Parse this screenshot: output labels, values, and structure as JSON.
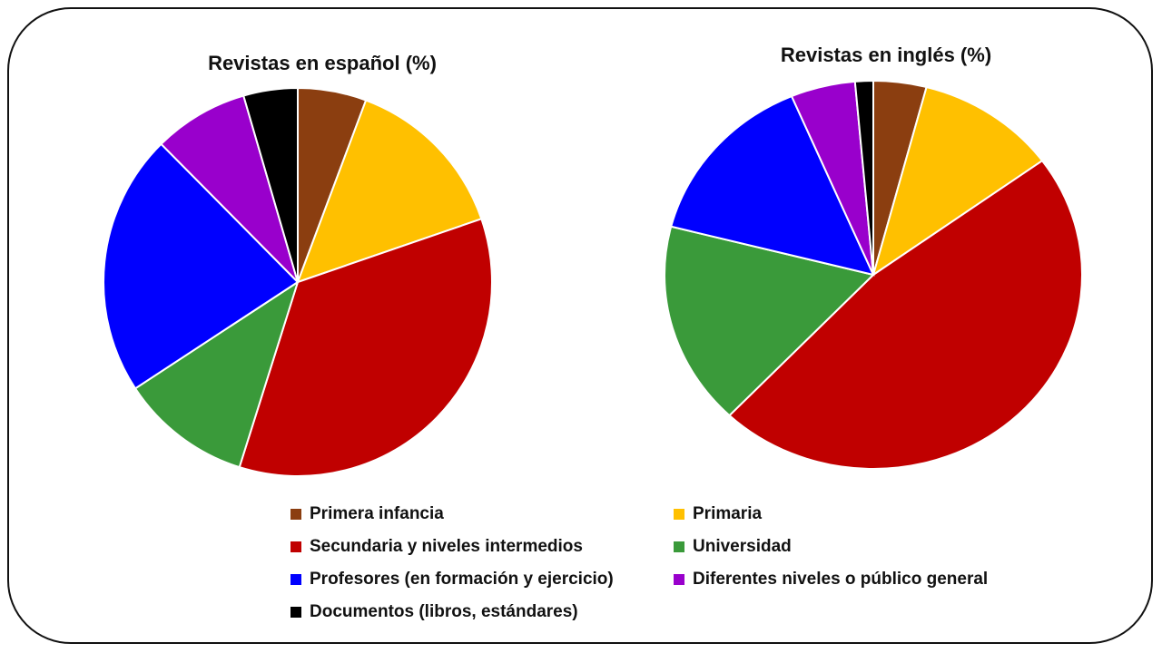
{
  "chart_data": [
    {
      "type": "pie",
      "title": "Revistas en español (%)",
      "categories": [
        "Primera infancia",
        "Primaria",
        "Secundaria y niveles intermedios",
        "Universidad",
        "Profesores (en formación y ejercicio)",
        "Diferentes niveles o público general",
        "Documentos (libros, estándares)"
      ],
      "values": [
        5.7,
        14.0,
        35.1,
        10.9,
        21.8,
        7.9,
        4.5
      ]
    },
    {
      "type": "pie",
      "title": "Revistas en inglés (%)",
      "categories": [
        "Primera infancia",
        "Primaria",
        "Secundaria y niveles intermedios",
        "Universidad",
        "Profesores (en formación y ejercicio)",
        "Diferentes niveles o público general",
        "Documentos (libros, estándares)"
      ],
      "values": [
        4.1,
        10.9,
        47.1,
        16.9,
        14.6,
        5.0,
        1.4
      ]
    }
  ],
  "colors": [
    "#8B3E10",
    "#FFC000",
    "#C00000",
    "#3A9A3A",
    "#0000FF",
    "#9900CC",
    "#000000"
  ],
  "legend": {
    "placement": "bottom",
    "items": [
      "Primera infancia",
      "Primaria",
      "Secundaria y niveles intermedios",
      "Universidad",
      "Profesores (en formación y ejercicio)",
      "Diferentes niveles o público general",
      "Documentos (libros, estándares)"
    ]
  }
}
